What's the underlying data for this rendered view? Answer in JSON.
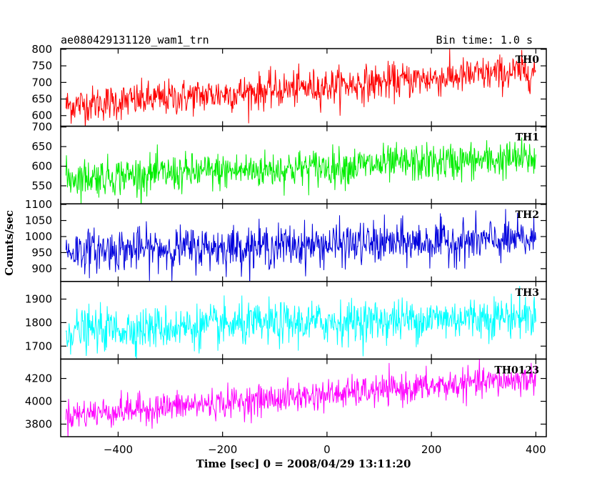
{
  "chart_data": {
    "type": "line",
    "title_left": "ae080429131120_wam1_trn",
    "title_right": "Bin time: 1.0 s",
    "xlabel": "Time [sec] 0 = 2008/04/29 13:11:20",
    "ylabel": "Counts/sec",
    "xlim": [
      -510,
      420
    ],
    "x_ticks": [
      -400,
      -200,
      0,
      200,
      400
    ],
    "x_tick_labels": [
      "−400",
      "−200",
      "0",
      "200",
      "400"
    ],
    "x_start": -500,
    "x_end": 400,
    "bin_time": 1.0,
    "panels": [
      {
        "name": "TH0",
        "color": "#ff0000",
        "ylim": [
          568,
          802
        ],
        "y_ticks": [
          600,
          650,
          700,
          750,
          800
        ],
        "trend_start": 630,
        "trend_end": 735,
        "noise": 45
      },
      {
        "name": "TH1",
        "color": "#00ee00",
        "ylim": [
          504,
          702
        ],
        "y_ticks": [
          550,
          600,
          650,
          700
        ],
        "trend_start": 570,
        "trend_end": 620,
        "noise": 40
      },
      {
        "name": "TH2",
        "color": "#0000dd",
        "ylim": [
          860,
          1102
        ],
        "y_ticks": [
          900,
          950,
          1000,
          1050,
          1100
        ],
        "trend_start": 955,
        "trend_end": 990,
        "noise": 55
      },
      {
        "name": "TH3",
        "color": "#00ffff",
        "ylim": [
          1645,
          1975
        ],
        "y_ticks": [
          1700,
          1800,
          1900
        ],
        "trend_start": 1765,
        "trend_end": 1830,
        "noise": 75
      },
      {
        "name": "TH0123",
        "color": "#ff00ff",
        "ylim": [
          3690,
          4370
        ],
        "y_ticks": [
          3800,
          4000,
          4200
        ],
        "trend_start": 3880,
        "trend_end": 4200,
        "noise": 110
      }
    ]
  }
}
